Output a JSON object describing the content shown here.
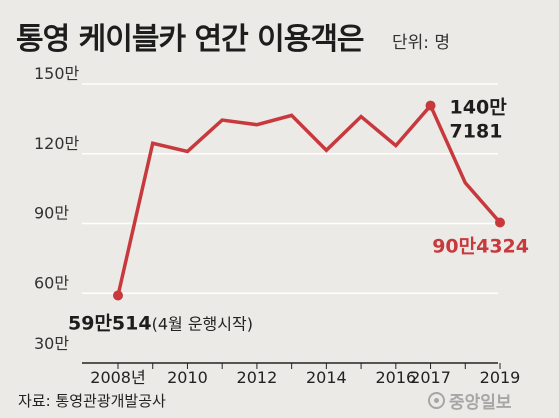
{
  "title": "통영 케이블카 연간 이용객은",
  "unit": "단위: 명",
  "source": "자료: 통영관광개발공사",
  "watermark": "중앙일보",
  "colors": {
    "line": "#c8393d",
    "background": "#ebeae6",
    "grid": "#ffffff"
  },
  "chart_data": {
    "type": "line",
    "title": "통영 케이블카 연간 이용객은",
    "unit_label": "단위: 명",
    "ylim": [
      30,
      150
    ],
    "y_ticks": [
      {
        "value": 150,
        "label": "150만"
      },
      {
        "value": 120,
        "label": "120만"
      },
      {
        "value": 90,
        "label": "90만"
      },
      {
        "value": 60,
        "label": "60만"
      },
      {
        "value": 30,
        "label": "30만"
      }
    ],
    "x_ticks": [
      {
        "x": 2008,
        "label": "2008년"
      },
      {
        "x": 2010,
        "label": "2010"
      },
      {
        "x": 2012,
        "label": "2012"
      },
      {
        "x": 2014,
        "label": "2014"
      },
      {
        "x": 2016,
        "label": "2016"
      },
      {
        "x": 2017,
        "label": "2017"
      },
      {
        "x": 2019,
        "label": "2019"
      }
    ],
    "grid": true,
    "x": [
      2008,
      2009,
      2010,
      2011,
      2012,
      2013,
      2014,
      2015,
      2016,
      2017,
      2018,
      2019
    ],
    "y": [
      59.0514,
      124.5,
      121,
      134.5,
      132.5,
      136.5,
      121.5,
      136,
      123.5,
      140.7181,
      107.5,
      90.4324
    ],
    "annotations": [
      {
        "index": 0,
        "text": "59만514",
        "note": "(4월 운행시작)",
        "style": "dark"
      },
      {
        "index": 9,
        "lines": [
          "140만",
          "7181"
        ],
        "style": "dark"
      },
      {
        "index": 11,
        "text": "90만4324",
        "style": "red"
      }
    ]
  }
}
